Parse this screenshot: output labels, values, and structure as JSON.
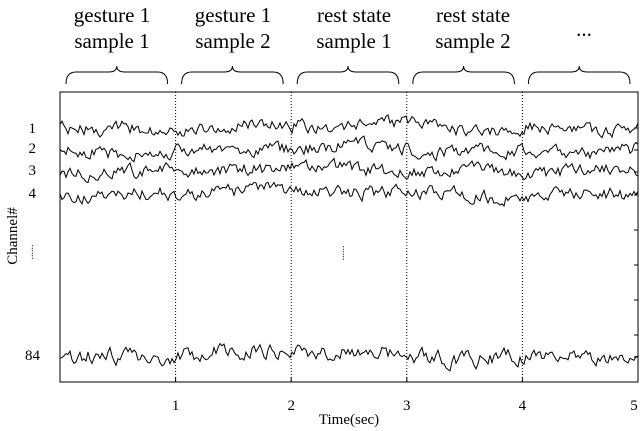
{
  "chart_data": {
    "type": "line",
    "xlabel": "Time(sec)",
    "ylabel": "Channel#",
    "xlim": [
      0,
      5
    ],
    "x_ticks": [
      "1",
      "2",
      "3",
      "4",
      "5"
    ],
    "segment_boundaries": [
      1,
      2,
      3,
      4
    ],
    "segments": [
      {
        "line1": "gesture 1",
        "line2": "sample 1"
      },
      {
        "line1": "gesture 1",
        "line2": "sample 2"
      },
      {
        "line1": "rest state",
        "line2": "sample 1"
      },
      {
        "line1": "rest state",
        "line2": "sample 2"
      },
      {
        "line1": "...",
        "line2": ""
      }
    ],
    "channels": [
      "1",
      "2",
      "3",
      "4",
      "84"
    ],
    "channel_gap_ellipsis": "......",
    "center_ellipsis": "......",
    "line_color": "#000000"
  }
}
